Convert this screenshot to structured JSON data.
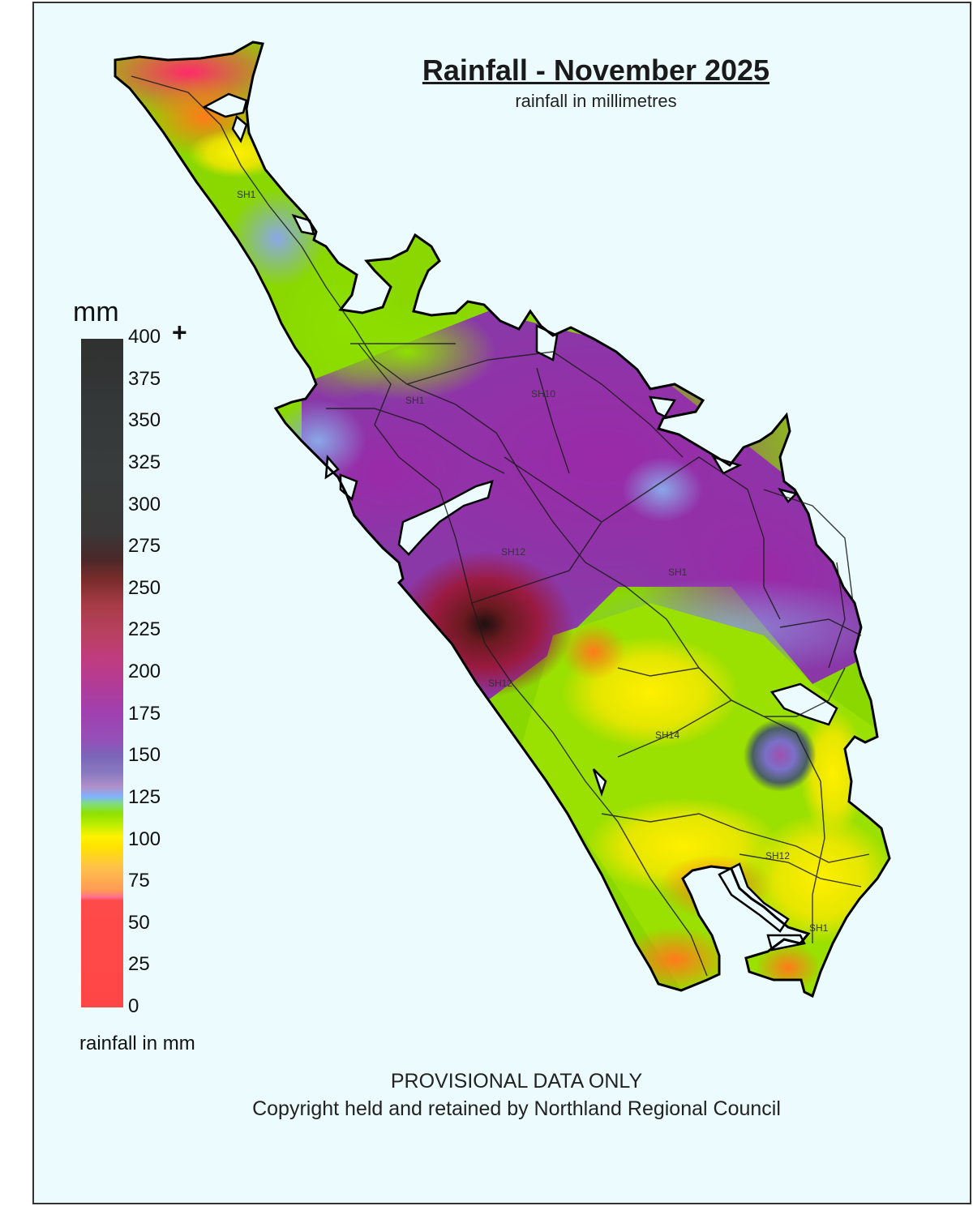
{
  "title": "Rainfall - November 2025",
  "subtitle": "rainfall in millimetres",
  "legend": {
    "unit": "mm",
    "plus": "+",
    "ticks": [
      "400",
      "375",
      "350",
      "325",
      "300",
      "275",
      "250",
      "225",
      "200",
      "175",
      "150",
      "125",
      "100",
      "75",
      "50",
      "25",
      "0"
    ],
    "caption": "rainfall in mm"
  },
  "roads": [
    "SH1",
    "SH1",
    "SH10",
    "SH12",
    "SH1",
    "SH12",
    "SH14",
    "SH12",
    "SH1"
  ],
  "footer": {
    "line1": "PROVISIONAL DATA ONLY",
    "line2": "Copyright held and retained by Northland Regional Council"
  },
  "colors": {
    "background": "#ecfbfd",
    "outline": "#000000",
    "max_rain": "#2a1414",
    "high_rain": "#8a2ca8",
    "mid_rain": "#7a6ac0",
    "low_rain": "#fff200",
    "min_rain": "#ff2a6a"
  }
}
